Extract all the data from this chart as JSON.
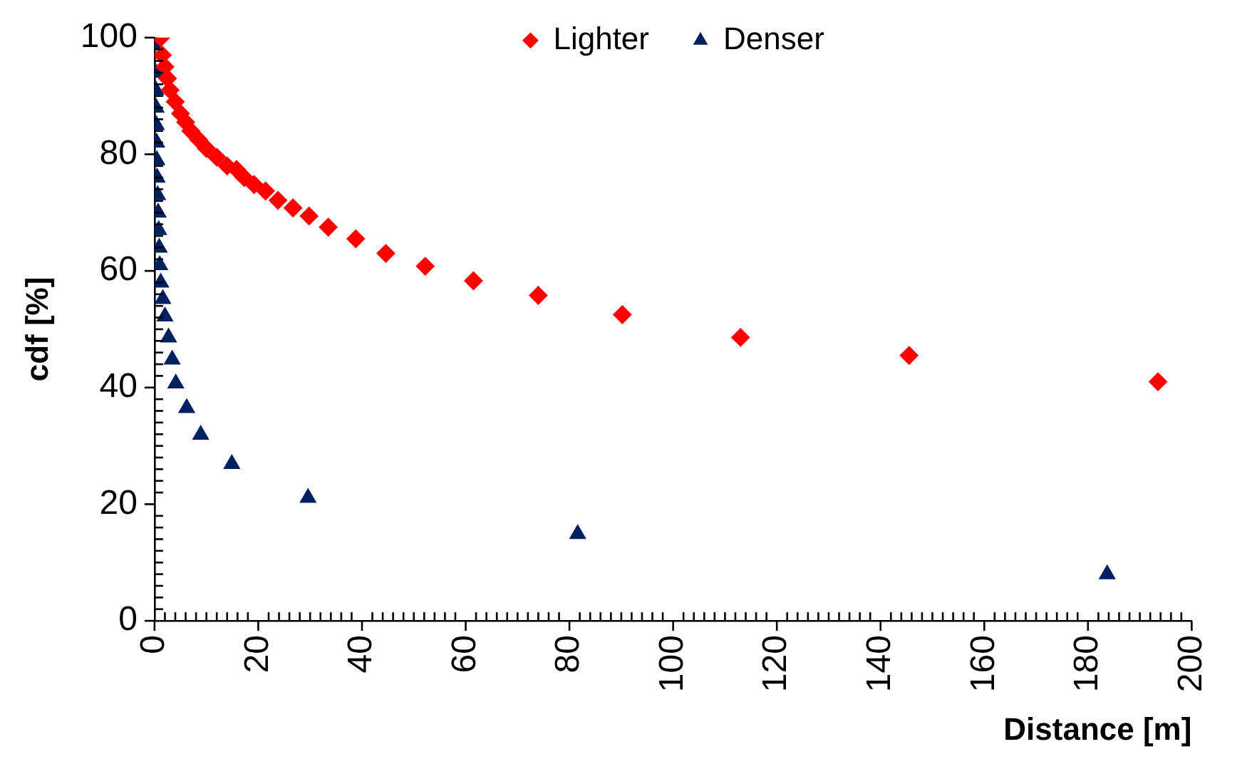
{
  "chart_data": {
    "type": "scatter",
    "xlabel": "Distance [m]",
    "ylabel": "cdf [%]",
    "legend": "top",
    "grid": false,
    "xlim": [
      0,
      200
    ],
    "ylim": [
      0,
      100
    ],
    "xticks": [
      0,
      {
        "value": 2,
        "label": null
      },
      {
        "value": 4,
        "label": null
      },
      {
        "value": 6,
        "label": null
      },
      {
        "value": 8,
        "label": null
      },
      {
        "value": 10,
        "label": null
      },
      {
        "value": 12,
        "label": null
      },
      {
        "value": 14,
        "label": null
      },
      {
        "value": 16,
        "label": null
      },
      {
        "value": 18,
        "label": null
      },
      20,
      {
        "value": 22,
        "label": null
      },
      {
        "value": 24,
        "label": null
      },
      {
        "value": 26,
        "label": null
      },
      {
        "value": 28,
        "label": null
      },
      {
        "value": 30,
        "label": null
      },
      {
        "value": 32,
        "label": null
      },
      {
        "value": 34,
        "label": null
      },
      {
        "value": 36,
        "label": null
      },
      {
        "value": 38,
        "label": null
      },
      40,
      {
        "value": 42,
        "label": null
      },
      {
        "value": 44,
        "label": null
      },
      {
        "value": 46,
        "label": null
      },
      {
        "value": 48,
        "label": null
      },
      {
        "value": 50,
        "label": null
      },
      {
        "value": 52,
        "label": null
      },
      {
        "value": 54,
        "label": null
      },
      {
        "value": 56,
        "label": null
      },
      {
        "value": 58,
        "label": null
      },
      60,
      {
        "value": 62,
        "label": null
      },
      {
        "value": 64,
        "label": null
      },
      {
        "value": 66,
        "label": null
      },
      {
        "value": 68,
        "label": null
      },
      {
        "value": 70,
        "label": null
      },
      {
        "value": 72,
        "label": null
      },
      {
        "value": 74,
        "label": null
      },
      {
        "value": 76,
        "label": null
      },
      {
        "value": 78,
        "label": null
      },
      80,
      {
        "value": 82,
        "label": null
      },
      {
        "value": 84,
        "label": null
      },
      {
        "value": 86,
        "label": null
      },
      {
        "value": 88,
        "label": null
      },
      {
        "value": 90,
        "label": null
      },
      {
        "value": 92,
        "label": null
      },
      {
        "value": 94,
        "label": null
      },
      {
        "value": 96,
        "label": null
      },
      {
        "value": 98,
        "label": null
      },
      100,
      {
        "value": 102,
        "label": null
      },
      {
        "value": 104,
        "label": null
      },
      {
        "value": 106,
        "label": null
      },
      {
        "value": 108,
        "label": null
      },
      {
        "value": 110,
        "label": null
      },
      {
        "value": 112,
        "label": null
      },
      {
        "value": 114,
        "label": null
      },
      {
        "value": 116,
        "label": null
      },
      {
        "value": 118,
        "label": null
      },
      120,
      {
        "value": 122,
        "label": null
      },
      {
        "value": 124,
        "label": null
      },
      {
        "value": 126,
        "label": null
      },
      {
        "value": 128,
        "label": null
      },
      {
        "value": 130,
        "label": null
      },
      {
        "value": 132,
        "label": null
      },
      {
        "value": 134,
        "label": null
      },
      {
        "value": 136,
        "label": null
      },
      {
        "value": 138,
        "label": null
      },
      140,
      {
        "value": 142,
        "label": null
      },
      {
        "value": 144,
        "label": null
      },
      {
        "value": 146,
        "label": null
      },
      {
        "value": 148,
        "label": null
      },
      {
        "value": 150,
        "label": null
      },
      {
        "value": 152,
        "label": null
      },
      {
        "value": 154,
        "label": null
      },
      {
        "value": 156,
        "label": null
      },
      {
        "value": 158,
        "label": null
      },
      160,
      {
        "value": 162,
        "label": null
      },
      {
        "value": 164,
        "label": null
      },
      {
        "value": 166,
        "label": null
      },
      {
        "value": 168,
        "label": null
      },
      {
        "value": 170,
        "label": null
      },
      {
        "value": 172,
        "label": null
      },
      {
        "value": 174,
        "label": null
      },
      {
        "value": 176,
        "label": null
      },
      {
        "value": 178,
        "label": null
      },
      180,
      {
        "value": 182,
        "label": null
      },
      {
        "value": 184,
        "label": null
      },
      {
        "value": 186,
        "label": null
      },
      {
        "value": 188,
        "label": null
      },
      {
        "value": 190,
        "label": null
      },
      {
        "value": 192,
        "label": null
      },
      {
        "value": 194,
        "label": null
      },
      {
        "value": 196,
        "label": null
      },
      {
        "value": 198,
        "label": null
      },
      200
    ],
    "yticks": [
      0,
      {
        "value": 2,
        "label": null
      },
      {
        "value": 4,
        "label": null
      },
      {
        "value": 6,
        "label": null
      },
      {
        "value": 8,
        "label": null
      },
      {
        "value": 10,
        "label": null
      },
      {
        "value": 12,
        "label": null
      },
      {
        "value": 14,
        "label": null
      },
      {
        "value": 16,
        "label": null
      },
      {
        "value": 18,
        "label": null
      },
      20,
      {
        "value": 22,
        "label": null
      },
      {
        "value": 24,
        "label": null
      },
      {
        "value": 26,
        "label": null
      },
      {
        "value": 28,
        "label": null
      },
      {
        "value": 30,
        "label": null
      },
      {
        "value": 32,
        "label": null
      },
      {
        "value": 34,
        "label": null
      },
      {
        "value": 36,
        "label": null
      },
      {
        "value": 38,
        "label": null
      },
      40,
      {
        "value": 42,
        "label": null
      },
      {
        "value": 44,
        "label": null
      },
      {
        "value": 46,
        "label": null
      },
      {
        "value": 48,
        "label": null
      },
      {
        "value": 50,
        "label": null
      },
      {
        "value": 52,
        "label": null
      },
      {
        "value": 54,
        "label": null
      },
      {
        "value": 56,
        "label": null
      },
      {
        "value": 58,
        "label": null
      },
      60,
      {
        "value": 62,
        "label": null
      },
      {
        "value": 64,
        "label": null
      },
      {
        "value": 66,
        "label": null
      },
      {
        "value": 68,
        "label": null
      },
      {
        "value": 70,
        "label": null
      },
      {
        "value": 72,
        "label": null
      },
      {
        "value": 74,
        "label": null
      },
      {
        "value": 76,
        "label": null
      },
      {
        "value": 78,
        "label": null
      },
      80,
      {
        "value": 82,
        "label": null
      },
      {
        "value": 84,
        "label": null
      },
      {
        "value": 86,
        "label": null
      },
      {
        "value": 88,
        "label": null
      },
      {
        "value": 90,
        "label": null
      },
      {
        "value": 92,
        "label": null
      },
      {
        "value": 94,
        "label": null
      },
      {
        "value": 96,
        "label": null
      },
      {
        "value": 98,
        "label": null
      },
      100
    ],
    "series": [
      {
        "name": "Lighter",
        "color": "#ff0000",
        "marker": "diamond",
        "x": [
          1.2,
          1.5,
          2,
          2.5,
          3,
          4,
          5,
          6,
          7,
          8.5,
          10,
          12,
          14,
          15.8,
          17.3,
          19.2,
          21.4,
          23.8,
          26.7,
          29.8,
          33.5,
          38.8,
          44.6,
          52.2,
          61.5,
          74,
          90.2,
          113,
          145.5,
          193.5
        ],
        "values": [
          100,
          97,
          95,
          93,
          91,
          89,
          87,
          85.5,
          84,
          82.5,
          81,
          79.5,
          78,
          77.4,
          76,
          74.8,
          73.7,
          72.1,
          70.8,
          69.4,
          67.5,
          65.5,
          63,
          60.8,
          58.3,
          55.8,
          52.5,
          48.6,
          45.5,
          41
        ]
      },
      {
        "name": "Denser",
        "color": "#002060",
        "marker": "triangle",
        "x": [
          0.1,
          0.2,
          0.25,
          0.3,
          0.35,
          0.4,
          0.45,
          0.5,
          0.6,
          0.7,
          0.8,
          0.9,
          1,
          1.2,
          1.6,
          2,
          2.7,
          3.4,
          4.1,
          6.2,
          8.9,
          14.9,
          29.6,
          81.6,
          183.7
        ],
        "values": [
          99,
          94,
          91,
          88,
          85,
          82,
          79,
          76,
          73,
          70,
          67,
          64,
          61,
          58,
          55.2,
          52.2,
          48.6,
          44.8,
          40.7,
          36.5,
          31.9,
          26.9,
          21.1,
          14.9,
          8
        ]
      }
    ]
  }
}
